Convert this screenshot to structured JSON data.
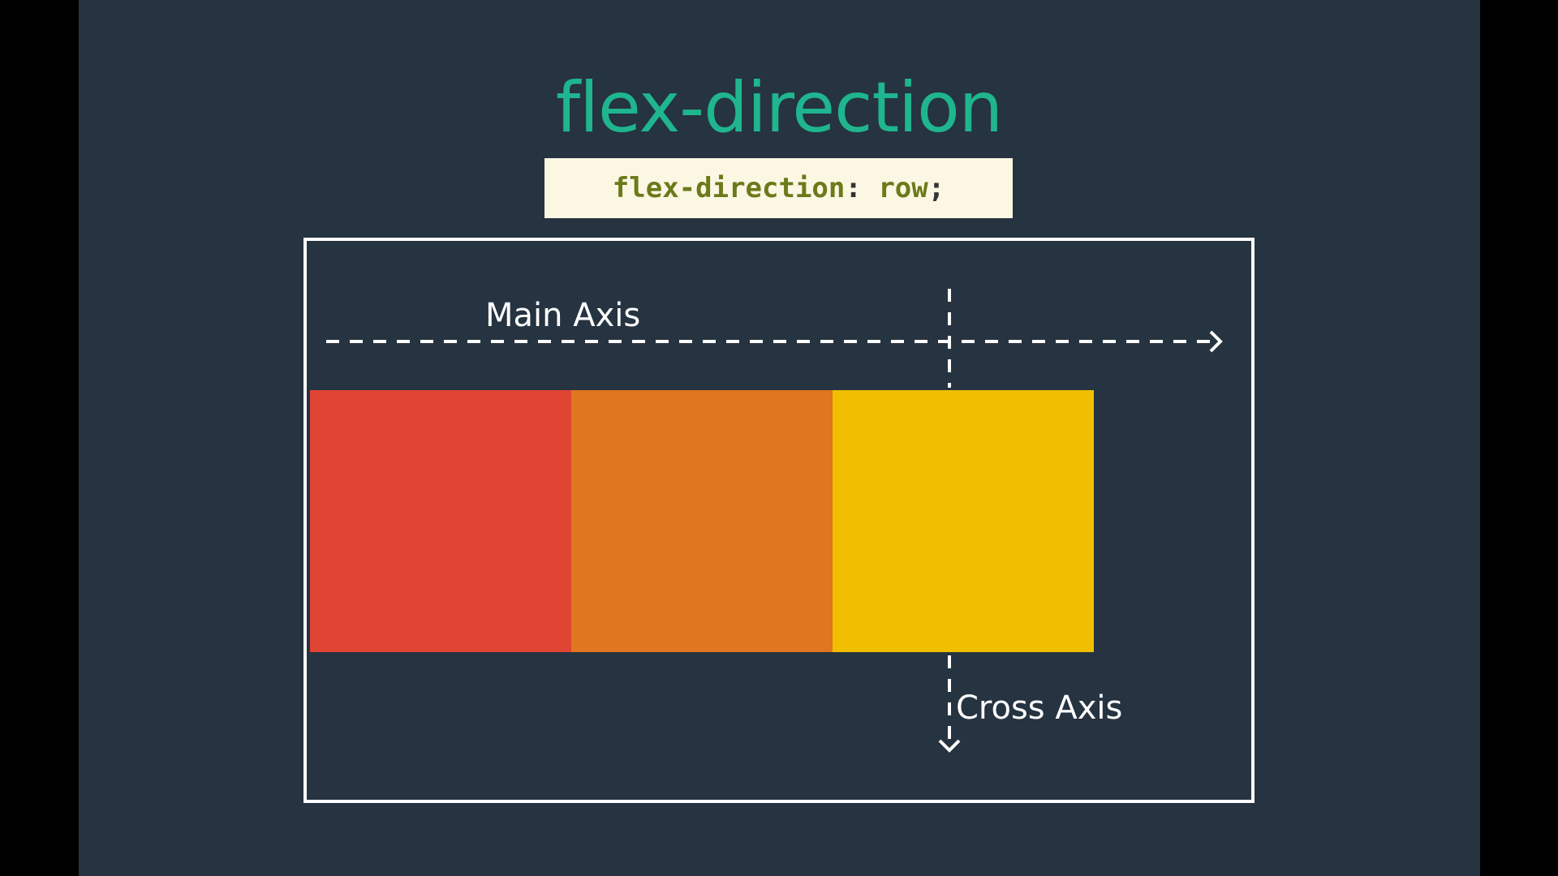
{
  "slide": {
    "title": "flex-direction",
    "code": {
      "property": "flex-direction",
      "colon": ":",
      "value": " row",
      "semicolon": ";"
    },
    "main_axis_label": "Main Axis",
    "cross_axis_label": "Cross Axis",
    "flex_items": [
      {
        "color": "#e04433"
      },
      {
        "color": "#e0761f"
      },
      {
        "color": "#f0bf02"
      }
    ]
  },
  "colors": {
    "background": "#263340",
    "title": "#1fb58f",
    "code_background": "#fcf7e3",
    "code_text": "#6b7a1a",
    "border": "#ffffff"
  }
}
